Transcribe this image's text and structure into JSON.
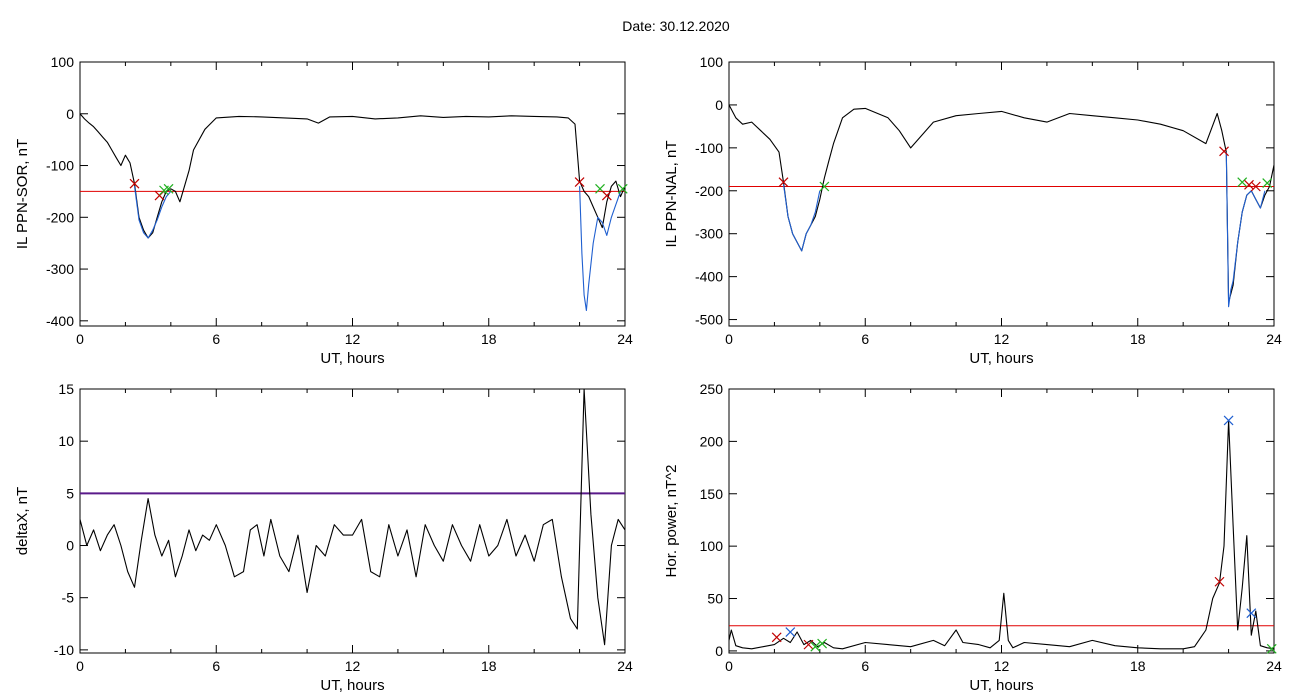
{
  "header": {
    "title": "Date:  30.12.2020"
  },
  "chart_data": [
    {
      "id": "il-sor",
      "type": "line",
      "xlabel": "UT, hours",
      "ylabel": "IL PPN-SOR, nT",
      "xlim": [
        0,
        24
      ],
      "ylim": [
        -410,
        100
      ],
      "xticks": [
        0,
        6,
        12,
        18,
        24
      ],
      "yticks": [
        100,
        0,
        -100,
        -200,
        -300,
        -400
      ],
      "threshold": {
        "value": -150,
        "color": "#e00000"
      },
      "series": [
        {
          "color": "#000000",
          "x": [
            0,
            0.2,
            0.4,
            0.6,
            0.8,
            1.0,
            1.2,
            1.4,
            1.6,
            1.8,
            2.0,
            2.2,
            2.4,
            2.6,
            2.8,
            3.0,
            3.2,
            3.4,
            3.6,
            3.8,
            4.0,
            4.2,
            4.4,
            4.6,
            4.8,
            5.0,
            5.5,
            6.0,
            7,
            8,
            9,
            10,
            10.5,
            11,
            12,
            13,
            14,
            15,
            16,
            17,
            18,
            19,
            20,
            21,
            21.5,
            21.8,
            22.0,
            22.2,
            22.4,
            22.6,
            22.8,
            23.0,
            23.2,
            23.4,
            23.6,
            23.8,
            24.0
          ],
          "y": [
            0,
            -10,
            -18,
            -25,
            -35,
            -45,
            -55,
            -70,
            -85,
            -100,
            -80,
            -95,
            -135,
            -200,
            -225,
            -240,
            -230,
            -200,
            -170,
            -150,
            -145,
            -150,
            -170,
            -140,
            -110,
            -70,
            -30,
            -8,
            -5,
            -6,
            -8,
            -10,
            -18,
            -6,
            -5,
            -10,
            -8,
            -4,
            -7,
            -5,
            -6,
            -4,
            -5,
            -6,
            -8,
            -20,
            -130,
            -150,
            -160,
            -180,
            -200,
            -220,
            -170,
            -140,
            -130,
            -160,
            -140
          ]
        },
        {
          "color": "#1f5fd0",
          "x": [
            2.4,
            2.6,
            2.8,
            3.0,
            3.2,
            3.4,
            3.6,
            3.8,
            4.0
          ],
          "y": [
            -140,
            -205,
            -230,
            -240,
            -225,
            -205,
            -180,
            -160,
            -150
          ]
        },
        {
          "color": "#1f5fd0",
          "x": [
            22.0,
            22.1,
            22.2,
            22.3,
            22.4,
            22.6,
            22.8,
            23.0,
            23.2,
            23.4,
            23.6,
            23.8
          ],
          "y": [
            -140,
            -270,
            -350,
            -380,
            -330,
            -250,
            -200,
            -210,
            -235,
            -200,
            -175,
            -150
          ]
        }
      ],
      "markers": [
        {
          "x": 2.4,
          "y": -135,
          "color": "#c00000"
        },
        {
          "x": 3.5,
          "y": -158,
          "color": "#c00000"
        },
        {
          "x": 3.7,
          "y": -148,
          "color": "#20b020"
        },
        {
          "x": 3.9,
          "y": -145,
          "color": "#20b020"
        },
        {
          "x": 22.0,
          "y": -132,
          "color": "#c00000"
        },
        {
          "x": 22.9,
          "y": -145,
          "color": "#20b020"
        },
        {
          "x": 23.2,
          "y": -158,
          "color": "#c00000"
        },
        {
          "x": 23.9,
          "y": -145,
          "color": "#20b020"
        }
      ]
    },
    {
      "id": "il-nal",
      "type": "line",
      "xlabel": "UT, hours",
      "ylabel": "IL PPN-NAL, nT",
      "xlim": [
        0,
        24
      ],
      "ylim": [
        -515,
        100
      ],
      "xticks": [
        0,
        6,
        12,
        18,
        24
      ],
      "yticks": [
        100,
        0,
        -100,
        -200,
        -300,
        -400,
        -500
      ],
      "threshold": {
        "value": -190,
        "color": "#e00000"
      },
      "series": [
        {
          "color": "#000000",
          "x": [
            0,
            0.3,
            0.6,
            1.0,
            1.4,
            1.8,
            2.2,
            2.4,
            2.6,
            2.8,
            3.0,
            3.2,
            3.4,
            3.6,
            3.8,
            4.0,
            4.2,
            4.4,
            4.6,
            4.8,
            5.0,
            5.5,
            6.0,
            7.0,
            7.5,
            8.0,
            9,
            10,
            11,
            12,
            13,
            14,
            15,
            16,
            17,
            18,
            19,
            20,
            21,
            21.5,
            21.7,
            21.9,
            22.0,
            22.2,
            22.4,
            22.6,
            22.8,
            23.0,
            23.2,
            23.4,
            23.6,
            23.8,
            24.0
          ],
          "y": [
            0,
            -30,
            -45,
            -40,
            -60,
            -80,
            -110,
            -180,
            -260,
            -300,
            -320,
            -340,
            -300,
            -280,
            -260,
            -220,
            -170,
            -130,
            -90,
            -60,
            -30,
            -10,
            -8,
            -30,
            -60,
            -100,
            -40,
            -25,
            -20,
            -15,
            -30,
            -40,
            -20,
            -25,
            -30,
            -35,
            -45,
            -60,
            -90,
            -20,
            -60,
            -110,
            -460,
            -420,
            -320,
            -250,
            -210,
            -200,
            -220,
            -240,
            -210,
            -190,
            -140
          ]
        },
        {
          "color": "#1f5fd0",
          "x": [
            2.4,
            2.6,
            2.8,
            3.0,
            3.2,
            3.4,
            3.6,
            3.8,
            4.0
          ],
          "y": [
            -185,
            -260,
            -300,
            -320,
            -340,
            -300,
            -280,
            -250,
            -200
          ]
        },
        {
          "color": "#1f5fd0",
          "x": [
            21.9,
            22.0,
            22.1,
            22.2,
            22.4,
            22.6,
            22.8,
            23.0,
            23.2,
            23.4,
            23.6
          ],
          "y": [
            -110,
            -470,
            -430,
            -410,
            -320,
            -250,
            -210,
            -200,
            -220,
            -240,
            -200
          ]
        }
      ],
      "markers": [
        {
          "x": 2.4,
          "y": -180,
          "color": "#c00000"
        },
        {
          "x": 4.2,
          "y": -190,
          "color": "#20b020"
        },
        {
          "x": 21.8,
          "y": -108,
          "color": "#c00000"
        },
        {
          "x": 22.6,
          "y": -180,
          "color": "#20b020"
        },
        {
          "x": 22.9,
          "y": -186,
          "color": "#c00000"
        },
        {
          "x": 23.2,
          "y": -190,
          "color": "#c00000"
        },
        {
          "x": 23.7,
          "y": -182,
          "color": "#20b020"
        }
      ]
    },
    {
      "id": "delta-x",
      "type": "line",
      "xlabel": "UT, hours",
      "ylabel": "deltaX, nT",
      "xlim": [
        0,
        24
      ],
      "ylim": [
        -10.3,
        15
      ],
      "xticks": [
        0,
        6,
        12,
        18,
        24
      ],
      "yticks": [
        15,
        10,
        5,
        0,
        -5,
        -10
      ],
      "threshold": {
        "value": 5,
        "color": "#5a1a8a"
      },
      "series": [
        {
          "color": "#000000",
          "x": [
            0,
            0.3,
            0.6,
            0.9,
            1.2,
            1.5,
            1.8,
            2.1,
            2.4,
            2.7,
            3.0,
            3.3,
            3.6,
            3.9,
            4.2,
            4.5,
            4.8,
            5.1,
            5.4,
            5.7,
            6.0,
            6.4,
            6.8,
            7.2,
            7.5,
            7.8,
            8.1,
            8.4,
            8.8,
            9.2,
            9.6,
            10.0,
            10.4,
            10.8,
            11.2,
            11.6,
            12.0,
            12.4,
            12.8,
            13.2,
            13.6,
            14.0,
            14.4,
            14.8,
            15.2,
            15.6,
            16.0,
            16.4,
            16.8,
            17.2,
            17.6,
            18.0,
            18.4,
            18.8,
            19.2,
            19.6,
            20.0,
            20.4,
            20.8,
            21.2,
            21.6,
            21.9,
            22.2,
            22.5,
            22.8,
            23.1,
            23.4,
            23.7,
            24.0
          ],
          "y": [
            2.5,
            0,
            1.5,
            -0.5,
            1.0,
            2.0,
            0,
            -2.5,
            -4.0,
            0.5,
            4.5,
            1.0,
            -1.0,
            0.5,
            -3.0,
            -1.0,
            1.5,
            -0.5,
            1.0,
            0.5,
            2.0,
            0,
            -3.0,
            -2.5,
            1.5,
            2.0,
            -1.0,
            2.5,
            -1.0,
            -2.5,
            1.0,
            -4.5,
            0,
            -1.0,
            2.0,
            1.0,
            1.0,
            2.5,
            -2.5,
            -3.0,
            2.0,
            -1.0,
            1.5,
            -3.0,
            2.0,
            0,
            -1.5,
            2.0,
            0,
            -1.5,
            2.0,
            -1.0,
            0,
            2.5,
            -1.0,
            1.0,
            -1.5,
            2.0,
            2.5,
            -3.0,
            -7.0,
            -8.0,
            15.0,
            3.0,
            -5.0,
            -9.5,
            0,
            2.5,
            1.5
          ]
        }
      ],
      "markers": []
    },
    {
      "id": "hor-power",
      "type": "line",
      "xlabel": "UT, hours",
      "ylabel": "Hor. power, nT^2",
      "xlim": [
        0,
        24
      ],
      "ylim": [
        -2,
        250
      ],
      "xticks": [
        0,
        6,
        12,
        18,
        24
      ],
      "yticks": [
        250,
        200,
        150,
        100,
        50,
        0
      ],
      "threshold": {
        "value": 24,
        "color": "#e00000"
      },
      "series": [
        {
          "color": "#000000",
          "x": [
            0,
            0.1,
            0.3,
            0.6,
            1.0,
            1.5,
            2.0,
            2.4,
            2.7,
            3.0,
            3.3,
            3.6,
            3.9,
            4.2,
            4.6,
            5.0,
            6.0,
            7.0,
            8.0,
            9.0,
            9.5,
            10.0,
            10.3,
            11.0,
            11.5,
            11.9,
            12.1,
            12.3,
            12.5,
            13.0,
            14.0,
            15.0,
            16.0,
            17.0,
            18.0,
            19.0,
            20.0,
            20.5,
            21.0,
            21.3,
            21.6,
            21.8,
            22.0,
            22.2,
            22.4,
            22.6,
            22.8,
            23.0,
            23.2,
            23.4,
            23.7,
            24.0
          ],
          "y": [
            10,
            20,
            5,
            3,
            2,
            4,
            6,
            12,
            8,
            18,
            6,
            10,
            4,
            8,
            3,
            2,
            8,
            6,
            4,
            10,
            5,
            20,
            8,
            6,
            3,
            10,
            55,
            10,
            3,
            8,
            6,
            4,
            10,
            5,
            3,
            2,
            2,
            4,
            20,
            50,
            65,
            100,
            220,
            120,
            20,
            60,
            110,
            15,
            38,
            5,
            3,
            2
          ]
        }
      ],
      "markers": [
        {
          "x": 2.1,
          "y": 13,
          "color": "#c00000"
        },
        {
          "x": 2.7,
          "y": 18,
          "color": "#1f5fd0"
        },
        {
          "x": 3.5,
          "y": 6,
          "color": "#c00000"
        },
        {
          "x": 3.8,
          "y": 4,
          "color": "#20b020"
        },
        {
          "x": 4.1,
          "y": 7,
          "color": "#20b020"
        },
        {
          "x": 21.6,
          "y": 66,
          "color": "#c00000"
        },
        {
          "x": 22.0,
          "y": 220,
          "color": "#1f5fd0"
        },
        {
          "x": 23.0,
          "y": 36,
          "color": "#1f5fd0"
        },
        {
          "x": 23.9,
          "y": 2,
          "color": "#20b020"
        }
      ]
    }
  ]
}
